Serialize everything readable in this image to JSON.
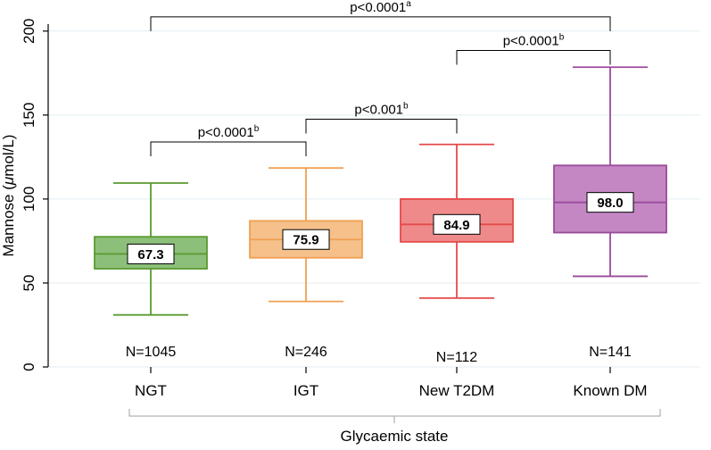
{
  "chart_data": {
    "type": "box",
    "ylabel_prefix": "Mannose (",
    "ylabel_mu": "μ",
    "ylabel_suffix": "mol/L)",
    "xlabel": "Glycaemic state",
    "ylim": [
      0,
      210
    ],
    "yticks": [
      "0",
      "50",
      "100",
      "150",
      "200"
    ],
    "grid": true,
    "categories": [
      {
        "name": "NGT",
        "n_label": "N=1045",
        "median_label": "67.3",
        "median": 67.3,
        "q1": 58.5,
        "q3": 77.5,
        "whisker_low": 31,
        "whisker_high": 109.5,
        "color": "#5a9a30",
        "fill": "#8cc07a"
      },
      {
        "name": "IGT",
        "n_label": "N=246",
        "median_label": "75.9",
        "median": 75.9,
        "q1": 65,
        "q3": 87,
        "whisker_low": 39,
        "whisker_high": 118.5,
        "color": "#f0a050",
        "fill": "#f5c08a"
      },
      {
        "name": "New T2DM",
        "n_label": "N=112",
        "median_label": "84.9",
        "median": 84.9,
        "q1": 74.5,
        "q3": 100,
        "whisker_low": 41,
        "whisker_high": 132.5,
        "color": "#e54a4a",
        "fill": "#ef8a8a"
      },
      {
        "name": "Known DM",
        "n_label": "N=141",
        "median_label": "98.0",
        "median": 98.0,
        "q1": 80,
        "q3": 120,
        "whisker_low": 54,
        "whisker_high": 178.5,
        "color": "#9a4a9a",
        "fill": "#c487c4"
      }
    ],
    "comparisons": [
      {
        "from": 0,
        "to": 3,
        "y": 208.5,
        "p": "p<0.0001",
        "sup": "a"
      },
      {
        "from": 2,
        "to": 3,
        "y": 188.5,
        "p": "p<0.0001",
        "sup": "b"
      },
      {
        "from": 1,
        "to": 2,
        "y": 147.5,
        "p": "p<0.001",
        "sup": "b"
      },
      {
        "from": 0,
        "to": 1,
        "y": 134,
        "p": "p<0.0001",
        "sup": "b"
      }
    ]
  }
}
